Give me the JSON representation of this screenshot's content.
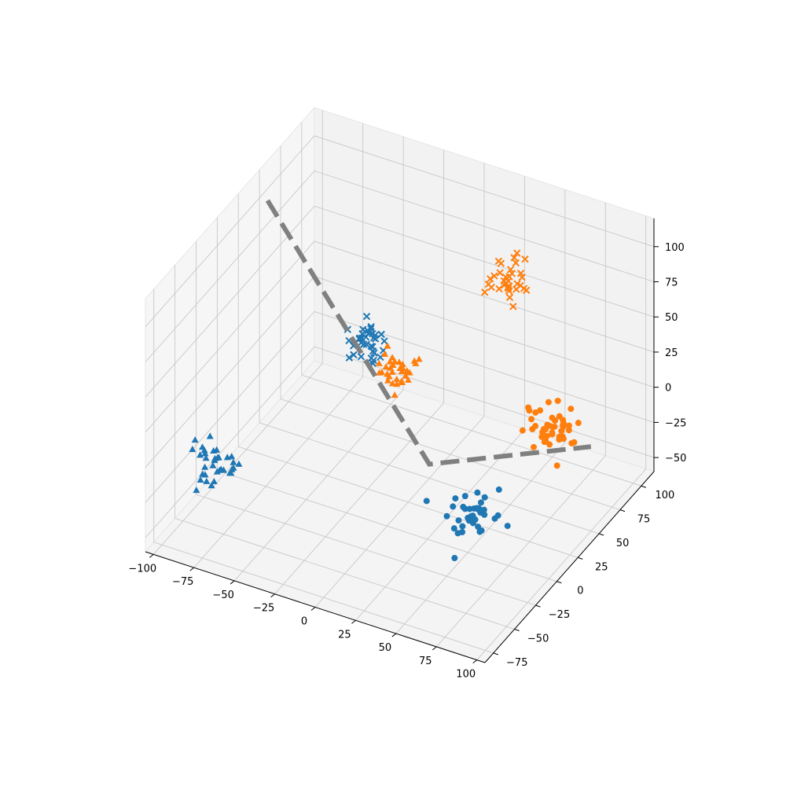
{
  "chart_data": {
    "type": "scatter",
    "title": "",
    "xlabel": "",
    "ylabel": "",
    "zlabel": "",
    "projection": "3d",
    "xlim": [
      -105,
      105
    ],
    "ylim": [
      -85,
      115
    ],
    "zlim": [
      -60,
      120
    ],
    "x_ticks": [
      "−100",
      "−75",
      "−50",
      "−25",
      "0",
      "25",
      "50",
      "75",
      "100"
    ],
    "y_ticks": [
      "−75",
      "−50",
      "−25",
      "0",
      "25",
      "50",
      "75",
      "100"
    ],
    "z_ticks": [
      "−50",
      "−25",
      "0",
      "25",
      "50",
      "75",
      "100"
    ],
    "grid": true,
    "colors": {
      "blue": "#1f77b4",
      "orange": "#ff7f0e",
      "line": "#808080"
    },
    "series": [
      {
        "color": "blue",
        "marker": "triangle",
        "center": [
          -80,
          -50,
          -10
        ],
        "spread": 7,
        "count": 35
      },
      {
        "color": "blue",
        "marker": "x",
        "center": [
          -40,
          50,
          20
        ],
        "spread": 6,
        "count": 35
      },
      {
        "color": "orange",
        "marker": "triangle",
        "center": [
          -20,
          50,
          10
        ],
        "spread": 6,
        "count": 35
      },
      {
        "color": "orange",
        "marker": "x",
        "center": [
          50,
          50,
          100
        ],
        "spread": 6,
        "count": 35
      },
      {
        "color": "blue",
        "marker": "circle",
        "center": [
          80,
          -50,
          10
        ],
        "spread": 7,
        "count": 40
      },
      {
        "color": "orange",
        "marker": "circle",
        "center": [
          50,
          100,
          -40
        ],
        "spread": 7,
        "count": 45
      }
    ],
    "lines": [
      {
        "color": "line",
        "style": "dashed",
        "points": [
          [
            -100,
            50,
            100
          ],
          [
            0,
            50,
            -50
          ],
          [
            100,
            50,
            0
          ]
        ]
      }
    ]
  }
}
